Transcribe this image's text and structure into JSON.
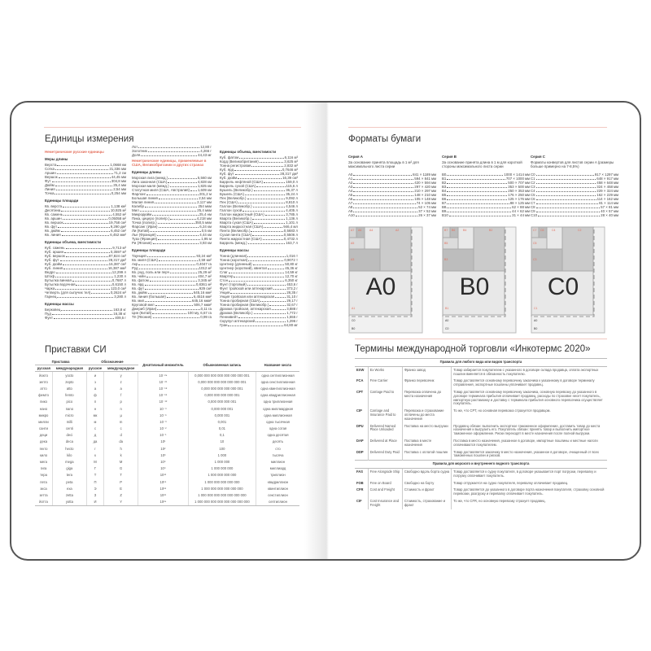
{
  "left": {
    "title": "Единицы измерения",
    "col1": [
      {
        "t": "red",
        "v": "Неметрические русские единицы"
      },
      {
        "t": "sub",
        "v": "Меры длины"
      },
      {
        "n": "Верста",
        "v": "1,0668 км"
      },
      {
        "n": "Сотка",
        "v": "21,336 мм"
      },
      {
        "n": "Аршин",
        "v": "71,2 см"
      },
      {
        "n": "Вершок",
        "v": "44,45 мм"
      },
      {
        "n": "Фут",
        "v": "304,8 мм"
      },
      {
        "n": "Дюйм",
        "v": "25,4 мм"
      },
      {
        "n": "Линия",
        "v": "2,54 мм"
      },
      {
        "n": "Точка",
        "v": "0,254 мм"
      },
      {
        "t": "sub",
        "v": "Единицы площади"
      },
      {
        "n": "Кв. верста",
        "v": "1,138 км²"
      },
      {
        "n": "Десятина",
        "v": "10,925 м²"
      },
      {
        "n": "Кв. сажень",
        "v": "4,552 м²"
      },
      {
        "n": "Кв. аршин",
        "v": "0,05058 м²"
      },
      {
        "n": "Кв. вершок",
        "v": "19,758 см²"
      },
      {
        "n": "Кв. фут",
        "v": "9,290 дм²"
      },
      {
        "n": "Кв. дюйм",
        "v": "6,452 см²"
      },
      {
        "n": "Кв. линия",
        "v": "6,452 мм²"
      },
      {
        "t": "sub",
        "v": "Единицы объема, вместимости"
      },
      {
        "n": "Куб. сажень",
        "v": "9,713 м³"
      },
      {
        "n": "Куб. аршин",
        "v": "0,3597 м³"
      },
      {
        "n": "Куб. вершок",
        "v": "87,824 см³"
      },
      {
        "n": "Куб. фут",
        "v": "28,317 дм³"
      },
      {
        "n": "Куб. дюйм",
        "v": "16,387 см³"
      },
      {
        "n": "Куб. линия",
        "v": "16,387 мм³"
      },
      {
        "n": "Ведро",
        "v": "12,299 л"
      },
      {
        "n": "Штоф",
        "v": "1,230 л"
      },
      {
        "n": "Бутылка винная",
        "v": "0,7687 л"
      },
      {
        "n": "Бутылка водочная",
        "v": "0,6150 л"
      },
      {
        "n": "Чарка",
        "v": "123,0 см³"
      },
      {
        "n": "Четверть (для сыпучих тел)",
        "v": "0,2624 м³"
      },
      {
        "n": "Гарнец",
        "v": "3,280 л"
      },
      {
        "t": "sub",
        "v": "Единицы массы"
      },
      {
        "n": "Берковец",
        "v": "163,8 кг"
      },
      {
        "n": "Пуд",
        "v": "16,38 кг"
      },
      {
        "n": "Фунт",
        "v": "409,5 г"
      }
    ],
    "col2": [
      {
        "n": "Лот",
        "v": "12,80 г"
      },
      {
        "n": "Золотник",
        "v": "4,266 г"
      },
      {
        "n": "Доля",
        "v": "44,43 мг"
      },
      {
        "t": "red",
        "v": "Неметрические единицы, применяемые в США, Великобритании и других странах"
      },
      {
        "t": "sub",
        "v": "Единицы длины"
      },
      {
        "n": "Морская лига (межд.)",
        "v": "5,560 км"
      },
      {
        "n": "Лига законная (США)",
        "v": "4,828 км"
      },
      {
        "n": "Морская миля (межд.)",
        "v": "1,825 км"
      },
      {
        "n": "Статутная миля (США, Австралия)",
        "v": "1,609 км"
      },
      {
        "n": "Фарлонг",
        "v": "201,2 м"
      },
      {
        "n": "Большая линия",
        "v": "2,54 мм"
      },
      {
        "n": "Малая линия",
        "v": "2,117 мм"
      },
      {
        "n": "Калибр",
        "v": "254 мкм"
      },
      {
        "n": "Мил",
        "v": "25,4 мкм"
      },
      {
        "n": "Микродюйм",
        "v": "25,4 нм"
      },
      {
        "n": "Пика, цицеро (полигр.)",
        "v": "4,218 мм"
      },
      {
        "n": "Точка (полигр.)",
        "v": "350,5 мкм"
      },
      {
        "n": "Фарсанг (Иран)",
        "v": "6,24 км"
      },
      {
        "n": "Ли (Китай)",
        "v": "0,5 км"
      },
      {
        "n": "Лье (Франция)",
        "v": "4,44 км"
      },
      {
        "n": "Туаз (Франция)",
        "v": "1,95 м"
      },
      {
        "n": "Ри (Япония)",
        "v": "3,93 км"
      },
      {
        "t": "sub",
        "v": "Единицы площади"
      },
      {
        "n": "Таунщип",
        "v": "93,24 км²"
      },
      {
        "n": "Кв. миля (США)",
        "v": "2,59 км²"
      },
      {
        "n": "Акр",
        "v": "0,4047 га"
      },
      {
        "n": "Руд",
        "v": "1012 м²"
      },
      {
        "n": "Кв. род, поль или перч",
        "v": "25,29 м²"
      },
      {
        "n": "Кв. чейн",
        "v": "404,7 м²"
      },
      {
        "n": "Кв. фатом",
        "v": "3,345 м²"
      },
      {
        "n": "Кв. ярд",
        "v": "0,8361 м²"
      },
      {
        "n": "Кв. фут",
        "v": "929 см²"
      },
      {
        "n": "Кв. дюйм",
        "v": "645,16 мм²"
      },
      {
        "n": "Кв. линия (большая)",
        "v": "6,4516 мм²"
      },
      {
        "n": "Кв. мил",
        "v": "645,16 мкм²"
      },
      {
        "n": "Круговой мил",
        "v": "506,7 мкм²"
      },
      {
        "n": "Джериб (Иран)",
        "v": "0,11 га"
      },
      {
        "n": "Цин (Китай)",
        "v": "100 му, 6,67 га"
      },
      {
        "n": "Тё (Япония)",
        "v": "0,99 га"
      }
    ],
    "col3": [
      {
        "t": "sub",
        "v": "Единицы объема, вместимости"
      },
      {
        "n": "Куб. фатом",
        "v": "6,116 м³"
      },
      {
        "n": "Корд (Великобритания)",
        "v": "3,625 м³"
      },
      {
        "n": "Тонна регистровая",
        "v": "2,832 м³"
      },
      {
        "n": "Куб. ярд",
        "v": "0,7646 м³"
      },
      {
        "n": "Куб. фут",
        "v": "28,317 дм³"
      },
      {
        "n": "Куб. дюйм",
        "v": "16,39 см³"
      },
      {
        "n": "Баррель нефтяной (США)",
        "v": "159,0 л"
      },
      {
        "n": "Баррель сухой (США)",
        "v": "115,6 л"
      },
      {
        "n": "Бушель (Великобр.)",
        "v": "36,37 л"
      },
      {
        "n": "Бушель (США)",
        "v": "35,24 л"
      },
      {
        "n": "Пек (Великобр.)",
        "v": "9,092 л"
      },
      {
        "n": "Пек (США)",
        "v": "8,810 л"
      },
      {
        "n": "Галлон (Великобр.)",
        "v": "4,546 л"
      },
      {
        "n": "Галлон сухой",
        "v": "4,405 л"
      },
      {
        "n": "Галлон жидкостный (США)",
        "v": "3,785 л"
      },
      {
        "n": "Кварта (Великобр.)",
        "v": "1,136 л"
      },
      {
        "n": "Кварта сухая (США)",
        "v": "1,101 л"
      },
      {
        "n": "Кварта жидкостная (США)",
        "v": "946,4 мл"
      },
      {
        "n": "Пинта (Великобр.)",
        "v": "0,5683 л"
      },
      {
        "n": "Сухая пинта (США)",
        "v": "0,5506 л"
      },
      {
        "n": "Пинта жидкостная (США)",
        "v": "0,4732 л"
      },
      {
        "n": "Баррель (межд.)",
        "v": "163,7 л"
      },
      {
        "t": "sub",
        "v": "Единицы массы"
      },
      {
        "n": "Тонна (длинная)",
        "v": "1,016 т"
      },
      {
        "n": "Тонна (короткая)",
        "v": "0,9072 т"
      },
      {
        "n": "Центнер (длинный)",
        "v": "50,80 кг"
      },
      {
        "n": "Центнер (короткий), квинтал",
        "v": "45,36 кг"
      },
      {
        "n": "Слаг",
        "v": "14,59 кг"
      },
      {
        "n": "Квартер",
        "v": "12,70 кг"
      },
      {
        "n": "Стон",
        "v": "6,350 кг"
      },
      {
        "n": "Фунт (торговый)",
        "v": "453,6 г"
      },
      {
        "n": "Фунт тройской или аптекарский",
        "v": "373,2 г"
      },
      {
        "n": "Унция",
        "v": "28,35 г"
      },
      {
        "n": "Унция тройская или аптекарская",
        "v": "31,10 г"
      },
      {
        "n": "Тонна пробирная (США)",
        "v": "29,17 г"
      },
      {
        "n": "Тонна пробирная (Великобр.)",
        "v": "32,67 г"
      },
      {
        "n": "Драхма тройская, аптекарская",
        "v": "3,888 г"
      },
      {
        "n": "Драхма (Великобр.)",
        "v": "1,772 г"
      },
      {
        "n": "Пеннивейт",
        "v": "1,555 г"
      },
      {
        "n": "Скрупул аптекарский",
        "v": "1,296 г"
      },
      {
        "n": "Гран",
        "v": "64,80 мг"
      }
    ]
  },
  "si": {
    "title": "Приставки СИ",
    "headers": {
      "prefix": "Приставка",
      "symbol": "Обозначение",
      "mult": "Десятичный множитель",
      "ordinary": "Обыкновенная запись",
      "name": "Название числа",
      "ru": "русская",
      "intl": "международная",
      "ru_sym": "русское",
      "intl_sym": "международное"
    },
    "rows": [
      [
        "йокто",
        "yocto",
        "и",
        "y",
        "10⁻²⁴",
        "0,000 000 000 000 000 000 000 001",
        "одна септиллионная"
      ],
      [
        "зепто",
        "zepto",
        "з",
        "z",
        "10⁻²¹",
        "0,000 000 000 000 000 000 001",
        "одна секстиллионная"
      ],
      [
        "атто",
        "atto",
        "а",
        "a",
        "10⁻¹⁸",
        "0,000 000 000 000 000 001",
        "одна квинтиллионная"
      ],
      [
        "фемто",
        "femto",
        "ф",
        "f",
        "10⁻¹⁵",
        "0,000 000 000 000 001",
        "одна квадриллионная"
      ],
      [
        "пико",
        "pico",
        "п",
        "p",
        "10⁻¹²",
        "0,000 000 000 001",
        "одна триллионная"
      ],
      [
        "нано",
        "nano",
        "н",
        "n",
        "10⁻⁹",
        "0,000 000 001",
        "одна миллиардная"
      ],
      [
        "микро",
        "micro",
        "мк",
        "µ",
        "10⁻⁶",
        "0,000 001",
        "одна миллионная"
      ],
      [
        "милли",
        "milli",
        "м",
        "m",
        "10⁻³",
        "0,001",
        "одна тысячная"
      ],
      [
        "санти",
        "centi",
        "с",
        "c",
        "10⁻²",
        "0,01",
        "одна сотая"
      ],
      [
        "деци",
        "deci",
        "д",
        "d",
        "10⁻¹",
        "0,1",
        "одна десятая"
      ],
      [
        "дека",
        "deca",
        "да",
        "da",
        "10¹",
        "10",
        "десять"
      ],
      [
        "гекто",
        "hecto",
        "г",
        "h",
        "10²",
        "100",
        "сто"
      ],
      [
        "кило",
        "kilo",
        "к",
        "k",
        "10³",
        "1 000",
        "тысяча"
      ],
      [
        "мега",
        "mega",
        "М",
        "M",
        "10⁶",
        "1 000 000",
        "миллион"
      ],
      [
        "гига",
        "giga",
        "Г",
        "G",
        "10⁹",
        "1 000 000 000",
        "миллиард"
      ],
      [
        "тера",
        "tera",
        "Т",
        "T",
        "10¹²",
        "1 000 000 000 000",
        "триллион"
      ],
      [
        "пета",
        "peta",
        "П",
        "P",
        "10¹⁵",
        "1 000 000 000 000 000",
        "квадриллион"
      ],
      [
        "экса",
        "exa",
        "Э",
        "E",
        "10¹⁸",
        "1 000 000 000 000 000 000",
        "квинтиллион"
      ],
      [
        "зетта",
        "zetta",
        "З",
        "Z",
        "10²¹",
        "1 000 000 000 000 000 000 000",
        "секстиллион"
      ],
      [
        "йотта",
        "yotta",
        "И",
        "Y",
        "10²⁴",
        "1 000 000 000 000 000 000 000 000",
        "септиллион"
      ]
    ]
  },
  "paper": {
    "title": "Форматы бумаги",
    "series": [
      {
        "name": "Серия A",
        "desc": "За основание принята площадь в 1 м² для максимального листа серии",
        "unit": "мм",
        "items": [
          [
            "A0",
            "841 × 1189"
          ],
          [
            "A1",
            "594 × 841"
          ],
          [
            "A2",
            "420 × 594"
          ],
          [
            "A3",
            "297 × 420"
          ],
          [
            "A4",
            "210 × 297"
          ],
          [
            "A5",
            "148 × 210"
          ],
          [
            "A6",
            "105 × 148"
          ],
          [
            "A7",
            "74 × 105"
          ],
          [
            "A8",
            "52 × 74"
          ],
          [
            "A9",
            "37 × 52"
          ],
          [
            "A10",
            "26 × 37"
          ]
        ],
        "big": "A0",
        "labels": [
          "A1",
          "A2",
          "A3",
          "A4",
          "A5",
          "A6",
          "A7",
          "C0",
          "B0"
        ]
      },
      {
        "name": "Серия B",
        "desc": "За основание принята длина в 1 м для короткой стороны максимального листа серии",
        "unit": "мм",
        "items": [
          [
            "B0",
            "1000 × 1414"
          ],
          [
            "B1",
            "707 × 1000"
          ],
          [
            "B2",
            "500 × 707"
          ],
          [
            "B3",
            "353 × 500"
          ],
          [
            "B4",
            "250 × 353"
          ],
          [
            "B5",
            "176 × 250"
          ],
          [
            "B6",
            "125 × 176"
          ],
          [
            "B7",
            "88 × 125"
          ],
          [
            "B8",
            "62 × 88"
          ],
          [
            "B9",
            "44 × 62"
          ],
          [
            "B10",
            "31 × 44"
          ]
        ],
        "big": "B0",
        "labels": [
          "B1",
          "B2",
          "B3",
          "B4",
          "B5",
          "B6",
          "B7",
          "A0",
          "C0"
        ]
      },
      {
        "name": "Серия C",
        "desc": "Форматы конвертов для листов серии A (размеры больше примерно на 7-8,5%)",
        "unit": "мм",
        "items": [
          [
            "C0",
            "917 × 1297"
          ],
          [
            "C1",
            "648 × 917"
          ],
          [
            "C2",
            "458 × 648"
          ],
          [
            "C3",
            "324 × 458"
          ],
          [
            "C4",
            "229 × 324"
          ],
          [
            "C5",
            "162 × 229"
          ],
          [
            "C6",
            "114 × 162"
          ],
          [
            "C7",
            "81 × 114"
          ],
          [
            "C8",
            "57 × 81"
          ],
          [
            "C9",
            "40 × 57"
          ],
          [
            "C10",
            "28 × 40"
          ]
        ],
        "big": "C0",
        "labels": [
          "C1",
          "C2",
          "C3",
          "C4",
          "C5",
          "C6",
          "C7",
          "A0",
          "B0"
        ]
      }
    ]
  },
  "inco": {
    "title": "Термины международной торговли «Инкотермс 2020»",
    "sections": [
      {
        "title": "Правила для любого вида или видов транспорта",
        "rows": [
          [
            "EXW",
            "Ex Works",
            "Франко завод",
            "Товар забирается покупателем с указанного в договоре склада продавца, оплата экспортных пошлин вменяется в обязанность покупателю."
          ],
          [
            "FCA",
            "Free Carrier",
            "Франко перевозчик",
            "Товар доставляется основному перевозчику заказчика к указанному в договоре терминалу отправления, экспортные пошлины уплачивает продавец."
          ],
          [
            "CPT",
            "Carriage Paid to",
            "Перевозка оплачена до места назначения",
            "Товар доставляется основному перевозчику заказчика, основную перевозку до указанного в договоре терминала прибытия оплачивает продавец, расходы по страховке несет покупатель, импортную растаможку и доставку с терминала прибытия основного перевозчика осуществляет покупатель."
          ],
          [
            "CIP",
            "Carriage and Insurance Paid to",
            "Перевозка и страхование оплачены до места назначения",
            "То же, что CPT, но основная перевозка страхуется продавцом."
          ],
          [
            "DPU",
            "Delivered Named Place Unloaded",
            "Поставка на место выгрузки",
            "Продавец обязан: выполнить экспортное таможенное оформление, доставить товар до места назначения и выгрузить его. Покупатель обязан: принять товар и выполнить импортное таможенное оформление. Риски переходят в месте назначения после полной выгрузки."
          ],
          [
            "DAP",
            "Delivered at Place",
            "Поставка в месте назначения",
            "Поставка в место назначения, указанное в договоре, импортные пошлины и местные налоги оплачиваются покупателем."
          ],
          [
            "DDP",
            "Delivered Duty Paid",
            "Поставка с оплатой пошлин",
            "Товар доставляется заказчику в место назначения, указанное в договоре, очищенный от всех таможенных пошлин и рисков."
          ]
        ]
      },
      {
        "title": "Правила для морского и внутреннего водного транспорта",
        "rows": [
          [
            "FAS",
            "Free Alongside Ship",
            "Свободно вдоль борта судна",
            "Товар доставляется к судну покупателя, в договоре указывается порт погрузки, перевалку и погрузку оплачивает покупатель."
          ],
          [
            "FOB",
            "Free on Board",
            "Свободно на борту",
            "Товар отгружается на судно покупателя, перевалку оплачивает продавец."
          ],
          [
            "CFR",
            "Cost and Freight",
            "Стоимость и фрахт",
            "Товар доставляется до указанного в договоре порта назначения покупателя, страховку основной перевозки, разгрузку и перевалку оплачивает покупатель."
          ],
          [
            "CIF",
            "Cost Insurance and Freight",
            "Стоимость, страхование и фрахт",
            "То же, что CFR, но основную перевозку страхует продавец."
          ]
        ]
      }
    ]
  },
  "colors": {
    "accent": "#e4705d",
    "rule": "#f2c9c2",
    "cover": "#555555"
  }
}
